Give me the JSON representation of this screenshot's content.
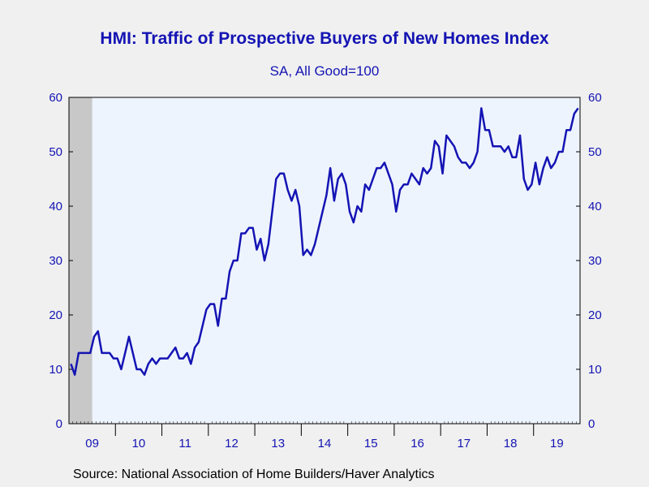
{
  "chart_data": {
    "type": "line",
    "title": "HMI: Traffic of Prospective Buyers of New Homes Index",
    "subtitle": "SA, All Good=100",
    "source": "Source:  National Association of Home Builders/Haver Analytics",
    "xlabel": "",
    "ylabel": "",
    "ylim": [
      0,
      60
    ],
    "yticks": [
      0,
      10,
      20,
      30,
      40,
      50,
      60
    ],
    "x_tick_labels": [
      "09",
      "10",
      "11",
      "12",
      "13",
      "14",
      "15",
      "16",
      "17",
      "18",
      "19"
    ],
    "recession_shading": {
      "start": "2009-01",
      "end": "2009-06",
      "color": "#c8c8c8"
    },
    "grid": false,
    "background": "#eef4fd",
    "line_color": "#1414b4",
    "series": [
      {
        "start": "2009-01",
        "frequency": "monthly",
        "values": [
          11,
          9,
          13,
          13,
          13,
          13,
          16,
          17,
          13,
          13,
          13,
          12,
          12,
          10,
          13,
          16,
          13,
          10,
          10,
          9,
          11,
          12,
          11,
          12,
          12,
          12,
          13,
          14,
          12,
          12,
          13,
          11,
          14,
          15,
          18,
          21,
          22,
          22,
          18,
          23,
          23,
          28,
          30,
          30,
          35,
          35,
          36,
          36,
          32,
          34,
          30,
          33,
          39,
          45,
          46,
          46,
          43,
          41,
          43,
          40,
          31,
          32,
          31,
          33,
          36,
          39,
          42,
          47,
          41,
          45,
          46,
          44,
          39,
          37,
          40,
          39,
          44,
          43,
          45,
          47,
          47,
          48,
          46,
          44,
          39,
          43,
          44,
          44,
          46,
          45,
          44,
          47,
          46,
          47,
          52,
          51,
          46,
          53,
          52,
          51,
          49,
          48,
          48,
          47,
          48,
          50,
          58,
          54,
          54,
          51,
          51,
          51,
          50,
          51,
          49,
          49,
          53,
          45,
          43,
          44,
          48,
          44,
          47,
          49,
          47,
          48,
          50,
          50,
          54,
          54,
          57,
          58
        ]
      }
    ]
  }
}
